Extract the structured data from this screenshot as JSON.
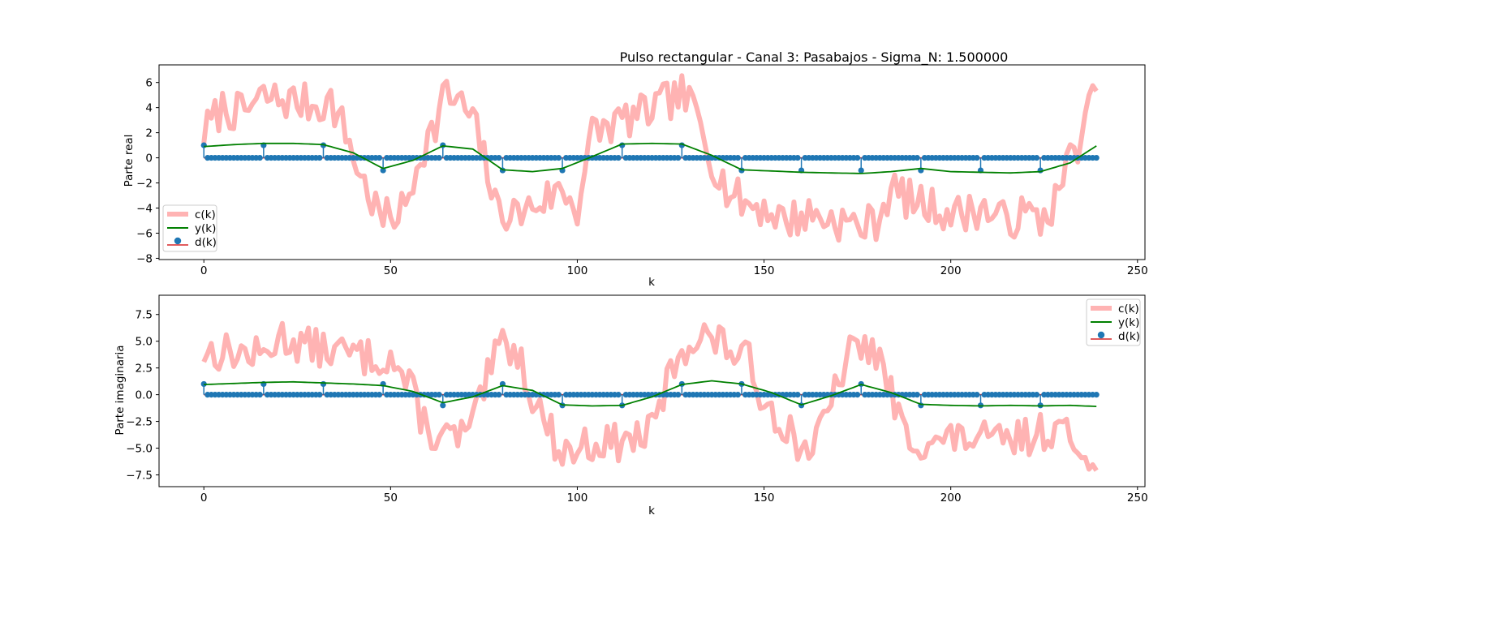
{
  "figure_title": "Pulso rectangular - Canal 3: Pasabajos - Sigma_N: 1.500000",
  "legend_labels": [
    "c(k)",
    "y(k)",
    "d(k)"
  ],
  "colors": {
    "c_line": "#ffb3b3",
    "y_line": "#008000",
    "d_marker": "#1f77b4",
    "d_stem": "#1f77b4",
    "d_baseline": "#d62728"
  },
  "chart_data": [
    {
      "type": "line",
      "panel": "top",
      "title": "Pulso rectangular - Canal 3: Pasabajos - Sigma_N: 1.500000",
      "xlabel": "k",
      "ylabel": "Parte real",
      "xlim": [
        -12,
        252
      ],
      "ylim": [
        -8.1,
        7.4
      ],
      "xticks": [
        0,
        50,
        100,
        150,
        200,
        250
      ],
      "yticks": [
        -8,
        -6,
        -4,
        -2,
        0,
        2,
        4,
        6
      ],
      "legend_position": "lower left",
      "symbols": {
        "k": [
          0,
          16,
          32,
          48,
          64,
          80,
          96,
          112,
          128,
          144,
          160,
          176,
          192,
          208,
          224
        ],
        "v": [
          1,
          1,
          1,
          -1,
          1,
          -1,
          -1,
          1,
          1,
          -1,
          -1,
          -1,
          -1,
          -1,
          -1
        ]
      },
      "symbol_period": 16,
      "k_max": 239,
      "y_trend": {
        "k": [
          0,
          8,
          16,
          24,
          32,
          40,
          48,
          56,
          64,
          72,
          80,
          88,
          96,
          104,
          112,
          120,
          128,
          136,
          144,
          160,
          176,
          184,
          192,
          200,
          208,
          216,
          224,
          232,
          239
        ],
        "v": [
          0.9,
          1.05,
          1.15,
          1.15,
          1.05,
          0.4,
          -0.85,
          -0.2,
          0.95,
          0.7,
          -0.95,
          -1.1,
          -0.85,
          0.1,
          1.1,
          1.15,
          1.1,
          0.2,
          -0.95,
          -1.15,
          -1.25,
          -1.1,
          -0.85,
          -1.1,
          -1.15,
          -1.2,
          -1.1,
          -0.4,
          0.95
        ]
      },
      "c_trend": {
        "k": [
          0,
          5,
          10,
          16,
          24,
          30,
          34,
          38,
          42,
          46,
          48,
          54,
          58,
          62,
          64,
          68,
          72,
          76,
          78,
          84,
          90,
          96,
          100,
          104,
          108,
          112,
          118,
          124,
          128,
          132,
          136,
          140,
          144,
          150,
          156,
          162,
          170,
          176,
          180,
          184,
          190,
          196,
          202,
          208,
          214,
          220,
          224,
          228,
          232,
          236,
          239
        ],
        "v": [
          2,
          4,
          3.5,
          4.8,
          4.5,
          4.2,
          4.5,
          2,
          -1.5,
          -4,
          -5,
          -4,
          0.5,
          2.5,
          5,
          4.5,
          3,
          -1,
          -4,
          -4.5,
          -3.5,
          -2.5,
          -4,
          2,
          2.5,
          3,
          3.5,
          4.5,
          5,
          3.5,
          0,
          -2.5,
          -3.5,
          -4,
          -5,
          -4.5,
          -5,
          -5.5,
          -5,
          -2.5,
          -3.5,
          -4,
          -4.5,
          -4,
          -5,
          -4.5,
          -5,
          -3.5,
          0,
          2.5,
          6
        ]
      },
      "c_noise_amplitude": 1.6,
      "c_seed": 7
    },
    {
      "type": "line",
      "panel": "bottom",
      "xlabel": "k",
      "ylabel": "Parte imaginaria",
      "xlim": [
        -12,
        252
      ],
      "ylim": [
        -8.6,
        9.3
      ],
      "xticks": [
        0,
        50,
        100,
        150,
        200,
        250
      ],
      "yticks": [
        -7.5,
        -5.0,
        -2.5,
        0.0,
        2.5,
        5.0,
        7.5
      ],
      "ytick_labels": [
        "−7.5",
        "−5.0",
        "−2.5",
        "0.0",
        "2.5",
        "5.0",
        "7.5"
      ],
      "legend_position": "upper right",
      "symbols": {
        "k": [
          0,
          16,
          32,
          48,
          64,
          80,
          96,
          112,
          128,
          144,
          160,
          176,
          192,
          208,
          224
        ],
        "v": [
          1,
          1,
          1,
          1,
          -1,
          1,
          -1,
          -1,
          1,
          1,
          -1,
          1,
          -1,
          -1,
          -1
        ]
      },
      "symbol_period": 16,
      "k_max": 239,
      "y_trend": {
        "k": [
          0,
          8,
          16,
          24,
          32,
          40,
          48,
          56,
          64,
          72,
          80,
          88,
          96,
          104,
          112,
          120,
          128,
          136,
          144,
          152,
          160,
          168,
          176,
          184,
          192,
          200,
          208,
          216,
          224,
          232,
          239
        ],
        "v": [
          0.95,
          1.05,
          1.15,
          1.2,
          1.1,
          1,
          0.85,
          0.3,
          -0.75,
          -0.2,
          0.85,
          0.4,
          -0.95,
          -1.05,
          -1.0,
          -0.2,
          0.95,
          1.3,
          1.0,
          0.2,
          -0.95,
          -0.1,
          0.95,
          0.2,
          -0.9,
          -1.0,
          -1.05,
          -1.0,
          -1.05,
          -1.0,
          -1.1
        ]
      },
      "c_trend": {
        "k": [
          0,
          8,
          16,
          20,
          28,
          36,
          44,
          50,
          56,
          60,
          64,
          68,
          72,
          76,
          80,
          84,
          88,
          92,
          96,
          104,
          112,
          120,
          124,
          128,
          134,
          140,
          146,
          150,
          156,
          160,
          164,
          168,
          172,
          176,
          180,
          184,
          188,
          196,
          204,
          212,
          220,
          228,
          234,
          239
        ],
        "v": [
          4,
          4,
          3.5,
          5.5,
          4.5,
          4,
          3.5,
          3.5,
          0,
          -3.5,
          -4,
          -4,
          -3,
          1.5,
          5,
          4,
          0,
          -3,
          -5.5,
          -4.5,
          -4.5,
          -3.5,
          1,
          4.5,
          5.5,
          4.5,
          3,
          -0.5,
          -3,
          -5,
          -4.5,
          -1,
          3.5,
          4.5,
          4,
          0,
          -4,
          -4.5,
          -4,
          -4.5,
          -4,
          -3,
          -5,
          -5.5
        ]
      },
      "c_noise_amplitude": 1.8,
      "c_seed": 13
    }
  ]
}
